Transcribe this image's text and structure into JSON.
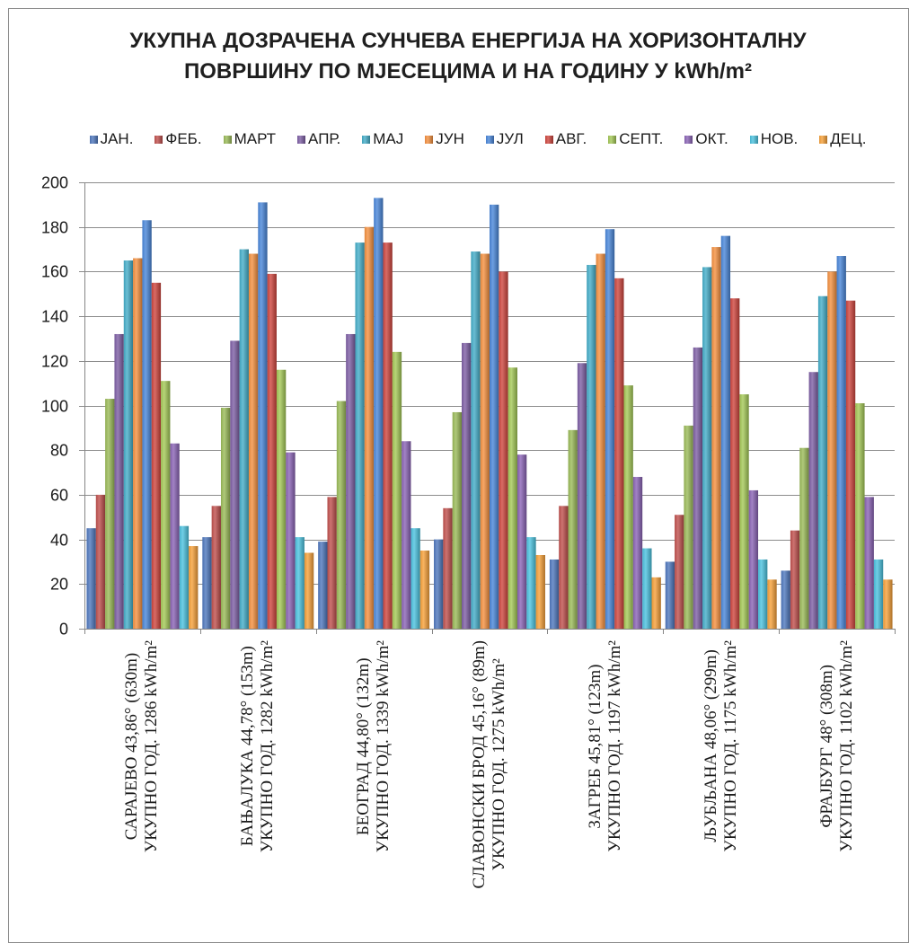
{
  "chart_data": {
    "type": "bar",
    "title": "УКУПНА ДОЗРАЧЕНА СУНЧЕВА ЕНЕРГИЈА НА ХОРИЗОНТАЛНУ\nПОВРШИНУ ПО МЈЕСЕЦИМА И НА ГОДИНУ У kWh/m²",
    "categories": [
      [
        "САРАЈЕВО 43,86° (630m)",
        "УКУПНО ГОД. 1286 kWh/m²"
      ],
      [
        "БАЊАЛУКА 44,78° (153m)",
        "УКУПНО ГОД. 1282 kWh/m²"
      ],
      [
        "БЕОГРАД 44,80° (132m)",
        "УКУПНО ГОД. 1339 kWh/m²"
      ],
      [
        "СЛАВОНСКИ БРОД 45,16° (89m)",
        "УКУПНО ГОД. 1275 kWh/m²"
      ],
      [
        "ЗАГРЕБ 45,81° (123m)",
        "УКУПНО ГОД. 1197 kWh/m²"
      ],
      [
        "ЉУБЉАНА 48,06° (299m)",
        "УКУПНО ГОД. 1175 kWh/m²"
      ],
      [
        "ФРАЈБУРГ 48° (308m)",
        "УКУПНО ГОД. 1102 kWh/m²"
      ]
    ],
    "series": [
      {
        "name": "ЈАН.",
        "color": "#4F78BE",
        "values": [
          45,
          41,
          39,
          40,
          31,
          30,
          26
        ]
      },
      {
        "name": "ФЕБ.",
        "color": "#C0504D",
        "values": [
          60,
          55,
          59,
          54,
          55,
          51,
          44
        ]
      },
      {
        "name": "МАРТ",
        "color": "#9BBB59",
        "values": [
          103,
          99,
          102,
          97,
          89,
          91,
          81
        ]
      },
      {
        "name": "АПР.",
        "color": "#7E5FA5",
        "values": [
          132,
          129,
          132,
          128,
          119,
          126,
          115
        ]
      },
      {
        "name": "МАЈ",
        "color": "#45AEC9",
        "values": [
          165,
          170,
          173,
          169,
          163,
          162,
          149
        ]
      },
      {
        "name": "ЈУН",
        "color": "#F59140",
        "values": [
          166,
          168,
          180,
          168,
          168,
          171,
          160
        ]
      },
      {
        "name": "ЈУЛ",
        "color": "#4A87DA",
        "values": [
          183,
          191,
          193,
          190,
          179,
          176,
          167
        ]
      },
      {
        "name": "АВГ.",
        "color": "#D0463E",
        "values": [
          155,
          159,
          173,
          160,
          157,
          148,
          147
        ]
      },
      {
        "name": "СЕПТ.",
        "color": "#A5C957",
        "values": [
          111,
          116,
          124,
          117,
          109,
          105,
          101
        ]
      },
      {
        "name": "ОКТ.",
        "color": "#8B64B6",
        "values": [
          83,
          79,
          84,
          78,
          68,
          62,
          59
        ]
      },
      {
        "name": "НОВ.",
        "color": "#4CC3E0",
        "values": [
          46,
          41,
          45,
          41,
          36,
          31,
          31
        ]
      },
      {
        "name": "ДЕЦ.",
        "color": "#F7A13A",
        "values": [
          37,
          34,
          35,
          33,
          23,
          22,
          22
        ]
      }
    ],
    "ylim": [
      0,
      200
    ],
    "y_ticks": [
      0,
      20,
      40,
      60,
      80,
      100,
      120,
      140,
      160,
      180,
      200
    ],
    "grid": true,
    "legend_position": "top"
  }
}
